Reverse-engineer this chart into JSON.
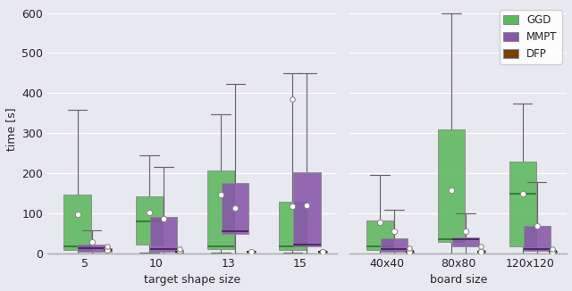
{
  "left_xlabel": "target shape size",
  "right_xlabel": "board size",
  "ylabel": "time [s]",
  "ylim": [
    0,
    620
  ],
  "yticks": [
    0,
    100,
    200,
    300,
    400,
    500,
    600
  ],
  "left_categories": [
    "5",
    "10",
    "13",
    "15"
  ],
  "right_categories": [
    "40x40",
    "80x80",
    "120x120"
  ],
  "colors": {
    "GGD": "#5cb85c",
    "MMPT": "#8855aa",
    "DFP": "#7B4000"
  },
  "background_color": "#e8e8f0",
  "left_data": {
    "GGD": [
      {
        "q1": 10,
        "median": 18,
        "q3": 148,
        "whislo": 0,
        "whishi": 358,
        "mean": 98,
        "fliers": []
      },
      {
        "q1": 22,
        "median": 80,
        "q3": 143,
        "whislo": 3,
        "whishi": 245,
        "mean": 103,
        "fliers": []
      },
      {
        "q1": 12,
        "median": 17,
        "q3": 208,
        "whislo": 3,
        "whishi": 348,
        "mean": 148,
        "fliers": []
      },
      {
        "q1": 10,
        "median": 17,
        "q3": 130,
        "whislo": 3,
        "whishi": 450,
        "mean": 118,
        "fliers": [
          385
        ]
      }
    ],
    "MMPT": [
      {
        "q1": 4,
        "median": 13,
        "q3": 22,
        "whislo": 0,
        "whishi": 57,
        "mean": 28,
        "fliers": []
      },
      {
        "q1": 4,
        "median": 12,
        "q3": 92,
        "whislo": 0,
        "whishi": 215,
        "mean": 88,
        "fliers": []
      },
      {
        "q1": 50,
        "median": 55,
        "q3": 176,
        "whislo": 0,
        "whishi": 423,
        "mean": 113,
        "fliers": []
      },
      {
        "q1": 18,
        "median": 22,
        "q3": 202,
        "whislo": 0,
        "whishi": 450,
        "mean": 120,
        "fliers": []
      }
    ],
    "DFP": [
      {
        "q1": 5,
        "median": 8,
        "q3": 13,
        "whislo": 1,
        "whishi": 14,
        "mean": 10,
        "fliers": [
          17
        ]
      },
      {
        "q1": 2,
        "median": 5,
        "q3": 8,
        "whislo": 0,
        "whishi": 10,
        "mean": 6,
        "fliers": [
          12
        ]
      },
      {
        "q1": 2,
        "median": 4,
        "q3": 6,
        "whislo": 0,
        "whishi": 7,
        "mean": 4,
        "fliers": []
      },
      {
        "q1": 2,
        "median": 4,
        "q3": 7,
        "whislo": 0,
        "whishi": 9,
        "mean": 5,
        "fliers": []
      }
    ]
  },
  "right_data": {
    "GGD": [
      {
        "q1": 10,
        "median": 17,
        "q3": 83,
        "whislo": 0,
        "whishi": 195,
        "mean": 78,
        "fliers": []
      },
      {
        "q1": 28,
        "median": 35,
        "q3": 310,
        "whislo": 0,
        "whishi": 600,
        "mean": 158,
        "fliers": []
      },
      {
        "q1": 18,
        "median": 150,
        "q3": 230,
        "whislo": 0,
        "whishi": 375,
        "mean": 150,
        "fliers": []
      }
    ],
    "MMPT": [
      {
        "q1": 4,
        "median": 12,
        "q3": 37,
        "whislo": 0,
        "whishi": 110,
        "mean": 55,
        "fliers": []
      },
      {
        "q1": 18,
        "median": 35,
        "q3": 40,
        "whislo": 0,
        "whishi": 100,
        "mean": 55,
        "fliers": []
      },
      {
        "q1": 7,
        "median": 12,
        "q3": 70,
        "whislo": 0,
        "whishi": 178,
        "mean": 68,
        "fliers": []
      }
    ],
    "DFP": [
      {
        "q1": 2,
        "median": 4,
        "q3": 7,
        "whislo": 0,
        "whishi": 9,
        "mean": 5,
        "fliers": [
          14
        ]
      },
      {
        "q1": 2,
        "median": 4,
        "q3": 7,
        "whislo": 0,
        "whishi": 9,
        "mean": 5,
        "fliers": [
          17
        ]
      },
      {
        "q1": 2,
        "median": 4,
        "q3": 7,
        "whislo": 0,
        "whishi": 9,
        "mean": 5,
        "fliers": [
          12
        ]
      }
    ]
  }
}
